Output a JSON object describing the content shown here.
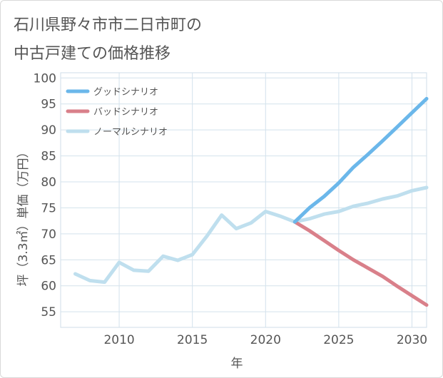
{
  "chart_data": {
    "type": "line",
    "title": "石川県野々市市二日市町の中古戸建ての価格推移",
    "title_lines": [
      "石川県野々市市二日市町の",
      "中古戸建ての価格推移"
    ],
    "xlabel": "年",
    "ylabel": "坪（3.3㎡）単価（万円）",
    "xlim": [
      2006,
      2031
    ],
    "ylim": [
      52,
      101
    ],
    "xticks": [
      2010,
      2015,
      2020,
      2025,
      2030
    ],
    "yticks": [
      55,
      60,
      65,
      70,
      75,
      80,
      85,
      90,
      95,
      100
    ],
    "grid": true,
    "legend_position": "top-left",
    "series": [
      {
        "name": "グッドシナリオ",
        "color": "#6bb7ea",
        "x": [
          2022,
          2023,
          2024,
          2025,
          2026,
          2027,
          2028,
          2029,
          2030,
          2031
        ],
        "y": [
          72.3,
          75.0,
          77.2,
          79.8,
          82.8,
          85.3,
          87.9,
          90.6,
          93.3,
          96.0
        ]
      },
      {
        "name": "バッドシナリオ",
        "color": "#d9808a",
        "x": [
          2022,
          2023,
          2024,
          2025,
          2026,
          2027,
          2028,
          2029,
          2030,
          2031
        ],
        "y": [
          72.3,
          70.6,
          68.7,
          66.8,
          65.0,
          63.4,
          61.8,
          59.9,
          58.1,
          56.3
        ]
      },
      {
        "name": "ノーマルシナリオ",
        "color": "#bfdfee",
        "x": [
          2007,
          2008,
          2009,
          2010,
          2011,
          2012,
          2013,
          2014,
          2015,
          2016,
          2017,
          2018,
          2019,
          2020,
          2021,
          2022,
          2023,
          2024,
          2025,
          2026,
          2027,
          2028,
          2029,
          2030,
          2031
        ],
        "y": [
          62.3,
          61.0,
          60.7,
          64.5,
          63.0,
          62.8,
          65.7,
          64.9,
          66.0,
          69.6,
          73.6,
          71.0,
          72.1,
          74.3,
          73.4,
          72.3,
          72.9,
          73.8,
          74.3,
          75.3,
          75.9,
          76.7,
          77.3,
          78.3,
          78.9
        ]
      }
    ]
  }
}
